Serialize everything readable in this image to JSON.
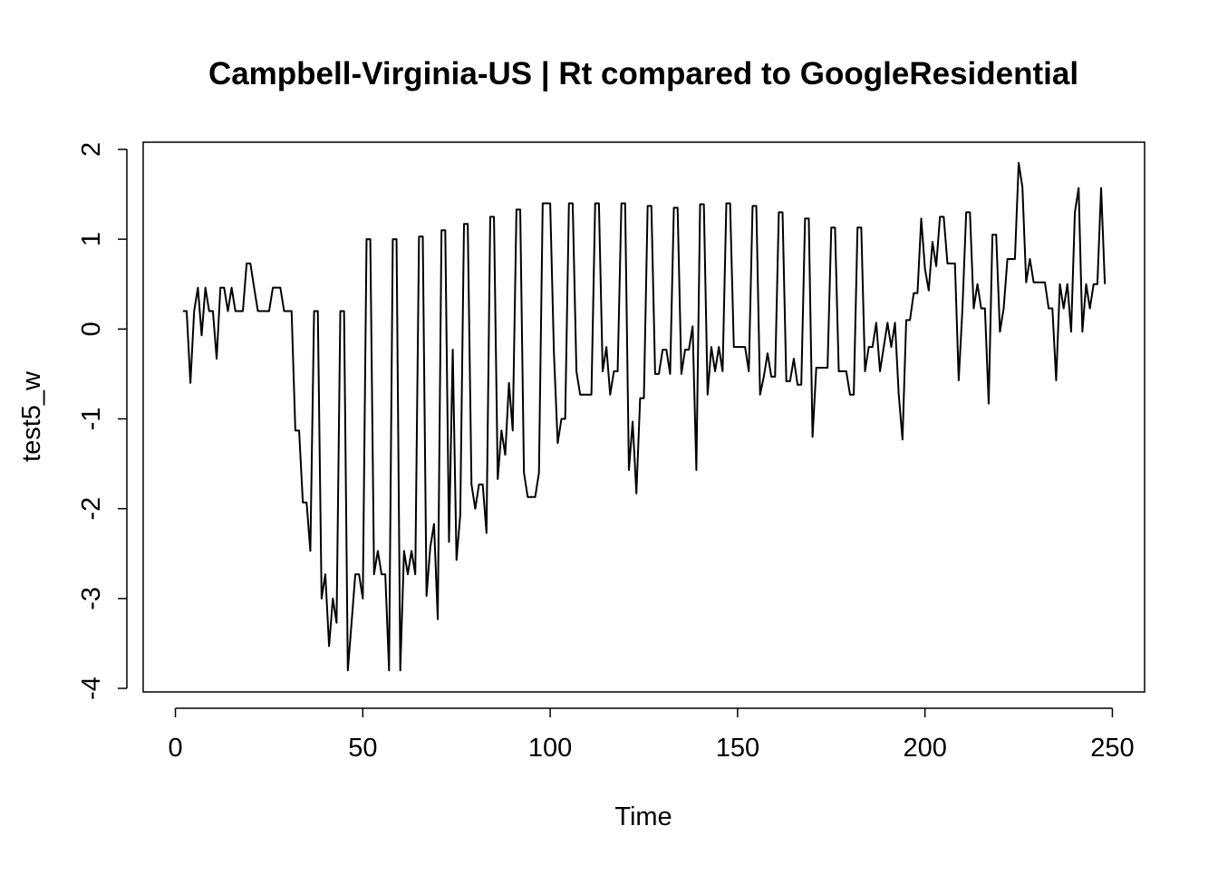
{
  "chart_data": {
    "type": "line",
    "title": "Campbell-Virginia-US | Rt compared to GoogleResidential",
    "xlabel": "Time",
    "ylabel": "test5_w",
    "xlim": [
      -8.6,
      258.6
    ],
    "ylim": [
      -4.04,
      2.08
    ],
    "x_ticks": [
      0,
      50,
      100,
      150,
      200,
      250
    ],
    "x_tick_labels": [
      "0",
      "50",
      "100",
      "150",
      "200",
      "250"
    ],
    "y_ticks": [
      -4,
      -3,
      -2,
      -1,
      0,
      1,
      2
    ],
    "y_tick_labels": [
      "-4",
      "-3",
      "-2",
      "-1",
      "0",
      "1",
      "2"
    ],
    "grid": false,
    "legend": "none",
    "line_color": "#000000",
    "series": [
      {
        "x_start": 2,
        "values": [
          0.2,
          0.2,
          -0.6,
          0.2,
          0.46,
          -0.07,
          0.46,
          0.2,
          0.2,
          -0.33,
          0.46,
          0.46,
          0.2,
          0.46,
          0.2,
          0.2,
          0.2,
          0.73,
          0.73,
          0.46,
          0.2,
          0.2,
          0.2,
          0.2,
          0.46,
          0.46,
          0.46,
          0.2,
          0.2,
          0.2,
          -1.13,
          -1.13,
          -1.93,
          -1.93,
          -2.47,
          0.2,
          0.2,
          -3.0,
          -2.73,
          -3.53,
          -3.0,
          -3.27,
          0.2,
          0.2,
          -3.8,
          -3.27,
          -2.73,
          -2.73,
          -3.0,
          1.0,
          1.0,
          -2.73,
          -2.47,
          -2.73,
          -2.73,
          -3.8,
          1.0,
          1.0,
          -3.8,
          -2.47,
          -2.73,
          -2.47,
          -2.73,
          1.03,
          1.03,
          -2.97,
          -2.43,
          -2.17,
          -3.23,
          1.1,
          1.1,
          -2.37,
          -0.23,
          -2.57,
          -2.07,
          1.17,
          1.17,
          -1.73,
          -2.0,
          -1.73,
          -1.73,
          -2.27,
          1.25,
          1.25,
          -1.67,
          -1.13,
          -1.4,
          -0.6,
          -1.13,
          1.33,
          1.33,
          -1.6,
          -1.87,
          -1.87,
          -1.87,
          -1.6,
          1.4,
          1.4,
          1.4,
          -0.27,
          -1.27,
          -1.0,
          -1.0,
          1.4,
          1.4,
          -0.47,
          -0.73,
          -0.73,
          -0.73,
          -0.73,
          1.4,
          1.4,
          -0.47,
          -0.2,
          -0.73,
          -0.47,
          -0.47,
          1.4,
          1.4,
          -1.57,
          -1.03,
          -1.83,
          -0.77,
          -0.77,
          1.37,
          1.37,
          -0.5,
          -0.5,
          -0.23,
          -0.23,
          -0.5,
          1.35,
          1.35,
          -0.5,
          -0.23,
          -0.23,
          0.03,
          -1.57,
          1.39,
          1.39,
          -0.73,
          -0.2,
          -0.47,
          -0.2,
          -0.47,
          1.4,
          1.4,
          -0.2,
          -0.2,
          -0.2,
          -0.2,
          -0.47,
          1.37,
          1.37,
          -0.73,
          -0.53,
          -0.27,
          -0.53,
          -0.53,
          1.3,
          1.3,
          -0.58,
          -0.58,
          -0.33,
          -0.62,
          -0.62,
          1.23,
          1.23,
          -1.2,
          -0.43,
          -0.43,
          -0.43,
          -0.43,
          1.13,
          1.13,
          -0.47,
          -0.47,
          -0.47,
          -0.73,
          -0.73,
          1.13,
          1.13,
          -0.47,
          -0.2,
          -0.2,
          0.07,
          -0.47,
          -0.2,
          0.07,
          -0.2,
          0.07,
          -0.73,
          -1.23,
          0.1,
          0.1,
          0.4,
          0.4,
          1.23,
          0.67,
          0.43,
          0.97,
          0.7,
          1.25,
          1.25,
          0.73,
          0.73,
          0.73,
          -0.57,
          0.23,
          1.3,
          1.3,
          0.23,
          0.5,
          0.23,
          0.23,
          -0.83,
          1.05,
          1.05,
          -0.03,
          0.23,
          0.78,
          0.78,
          0.78,
          1.85,
          1.58,
          0.52,
          0.78,
          0.52,
          0.52,
          0.52,
          0.52,
          0.23,
          0.23,
          -0.57,
          0.5,
          0.23,
          0.5,
          -0.03,
          1.3,
          1.57,
          -0.03,
          0.5,
          0.23,
          0.5,
          0.5,
          1.57,
          0.5
        ]
      }
    ]
  }
}
